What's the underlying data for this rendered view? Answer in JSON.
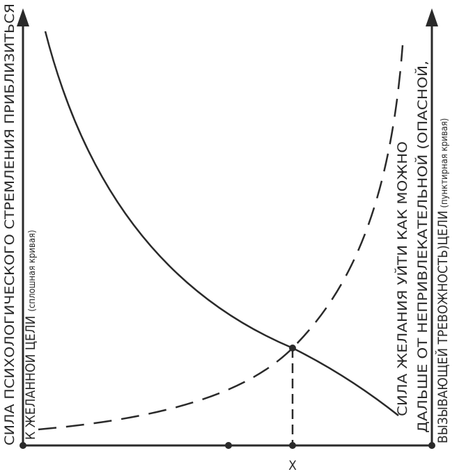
{
  "left_axis": {
    "line1": "СИЛА ПСИХОЛОГИЧЕСКОГО СТРЕМЛЕНИЯ ПРИБЛИЗИТЬСЯ",
    "line2_main": "К ЖЕЛАННОЙ ЦЕЛИ",
    "line2_note": "(сплошная кривая)"
  },
  "right_axis": {
    "line1": "СИЛА ЖЕЛАНИЯ УЙТИ КАК МОЖНО",
    "line2": "ДАЛЬШЕ ОТ НЕПРИВЛЕКАТЕЛЬНОЙ (ОПАСНОЙ,",
    "line3_main": "ВЫЗЫВАЮЩЕЙ ТРЕВОЖНОСТЬ)ЦЕЛИ",
    "line3_note": "(пунктирная кривая)"
  },
  "x_axis": {
    "marker_label": "X"
  },
  "colors": {
    "ink": "#2a2a2a",
    "background": "#ffffff"
  }
}
